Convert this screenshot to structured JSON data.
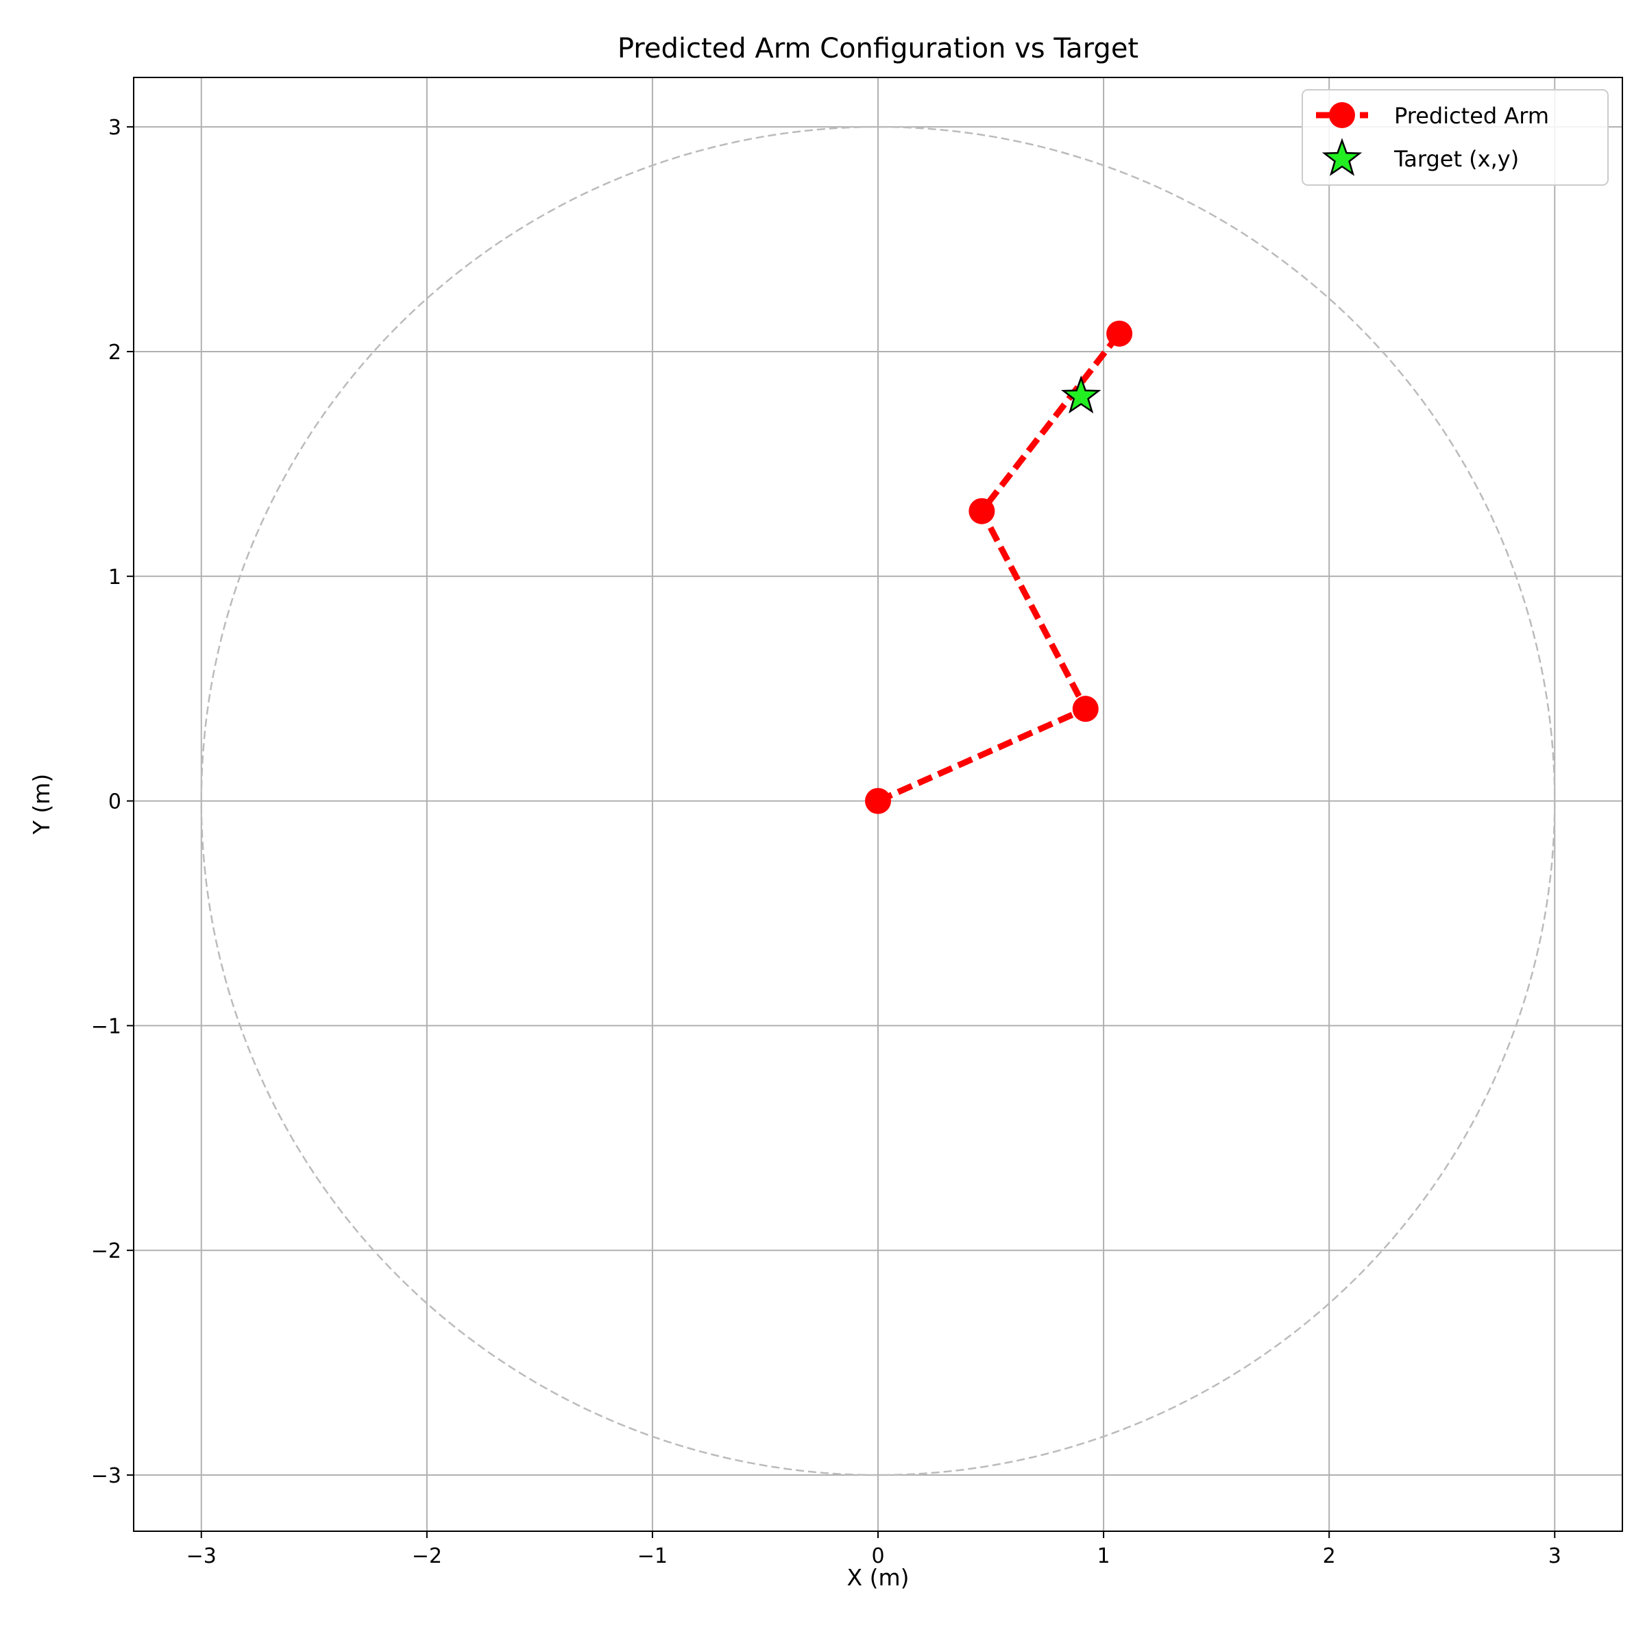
{
  "chart_data": {
    "type": "line",
    "title": "Predicted Arm Configuration vs Target",
    "xlabel": "X (m)",
    "ylabel": "Y (m)",
    "xlim": [
      -3.3,
      3.3
    ],
    "ylim": [
      -3.25,
      3.22
    ],
    "xticks": [
      -3,
      -2,
      -1,
      0,
      1,
      2,
      3
    ],
    "yticks": [
      -3,
      -2,
      -1,
      0,
      1,
      2,
      3
    ],
    "xtick_labels": [
      "−3",
      "−2",
      "−1",
      "0",
      "1",
      "2",
      "3"
    ],
    "ytick_labels": [
      "−3",
      "−2",
      "−1",
      "0",
      "1",
      "2",
      "3"
    ],
    "grid": true,
    "legend_position": "top-right",
    "reach_circle": {
      "radius": 3.0,
      "style": "dashed",
      "color": "#bbbbbb"
    },
    "series": [
      {
        "name": "Predicted Arm",
        "kind": "line-markers",
        "style": "dashed",
        "color": "#ff0000",
        "points": [
          [
            0,
            0
          ],
          [
            0.92,
            0.41
          ],
          [
            0.46,
            1.29
          ],
          [
            1.07,
            2.08
          ]
        ]
      },
      {
        "name": "Target (x,y)",
        "kind": "star-marker",
        "color": "#22ee22",
        "edge_color": "#000000",
        "points": [
          [
            0.9,
            1.8
          ]
        ]
      }
    ]
  }
}
